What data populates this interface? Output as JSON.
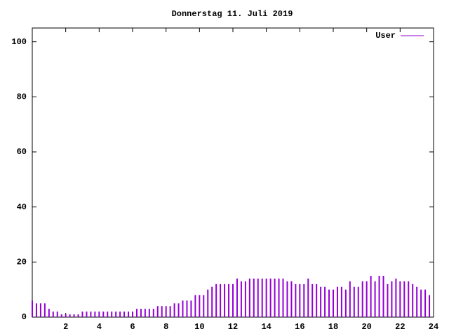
{
  "chart_data": {
    "type": "impulse",
    "title": "Donnerstag 11. Juli 2019",
    "x": [
      0,
      0.25,
      0.5,
      0.75,
      1,
      1.25,
      1.5,
      1.75,
      2,
      2.25,
      2.5,
      2.75,
      3,
      3.25,
      3.5,
      3.75,
      4,
      4.25,
      4.5,
      4.75,
      5,
      5.25,
      5.5,
      5.75,
      6,
      6.25,
      6.5,
      6.75,
      7,
      7.25,
      7.5,
      7.75,
      8,
      8.25,
      8.5,
      8.75,
      9,
      9.25,
      9.5,
      9.75,
      10,
      10.25,
      10.5,
      10.75,
      11,
      11.25,
      11.5,
      11.75,
      12,
      12.25,
      12.5,
      12.75,
      13,
      13.25,
      13.5,
      13.75,
      14,
      14.25,
      14.5,
      14.75,
      15,
      15.25,
      15.5,
      15.75,
      16,
      16.25,
      16.5,
      16.75,
      17,
      17.25,
      17.5,
      17.75,
      18,
      18.25,
      18.5,
      18.75,
      19,
      19.25,
      19.5,
      19.75,
      20,
      20.25,
      20.5,
      20.75,
      21,
      21.25,
      21.5,
      21.75,
      22,
      22.25,
      22.5,
      22.75,
      23,
      23.25,
      23.5,
      23.75
    ],
    "series": [
      {
        "name": "User",
        "color": "#9400d3",
        "values": [
          6,
          5,
          5,
          5,
          3,
          2,
          2,
          1,
          1,
          1,
          1,
          1,
          2,
          2,
          2,
          2,
          2,
          2,
          2,
          2,
          2,
          2,
          2,
          2,
          2,
          3,
          3,
          3,
          3,
          3,
          4,
          4,
          4,
          4,
          5,
          5,
          6,
          6,
          6,
          8,
          8,
          8,
          10,
          11,
          12,
          12,
          12,
          12,
          12,
          14,
          13,
          13,
          14,
          14,
          14,
          14,
          14,
          14,
          14,
          14,
          14,
          13,
          13,
          12,
          12,
          12,
          14,
          12,
          12,
          11,
          11,
          10,
          10,
          11,
          11,
          10,
          13,
          11,
          11,
          13,
          13,
          15,
          13,
          15,
          15,
          12,
          13,
          14,
          13,
          13,
          13,
          12,
          11,
          10,
          10,
          8
        ]
      }
    ],
    "xlim": [
      0,
      24
    ],
    "xticks": [
      2,
      4,
      6,
      8,
      10,
      12,
      14,
      16,
      18,
      20,
      22,
      24
    ],
    "ylim": [
      0,
      105
    ],
    "yticks": [
      0,
      20,
      40,
      60,
      80,
      100
    ],
    "legend": "top-right"
  }
}
